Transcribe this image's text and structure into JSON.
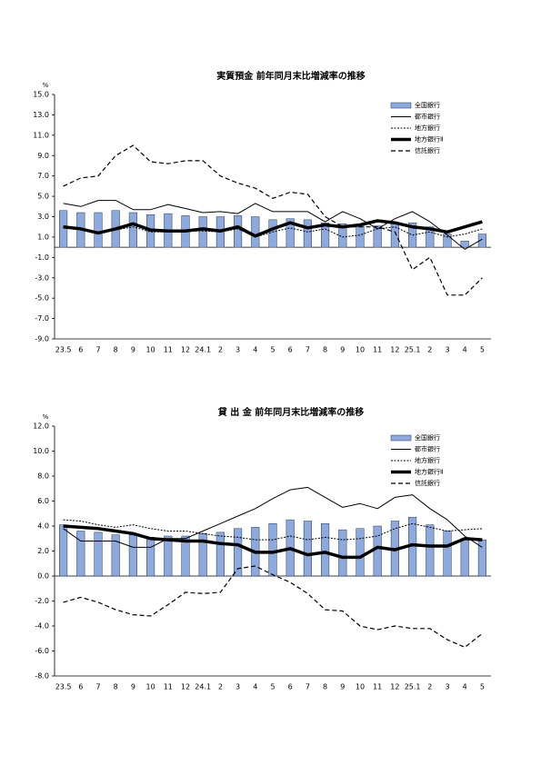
{
  "chart_data": [
    {
      "type": "bar-line",
      "title": "実質預金 前年同月末比増減率の推移",
      "y_unit": "%",
      "categories": [
        "23.5",
        "6",
        "7",
        "8",
        "9",
        "10",
        "11",
        "12",
        "24.1",
        "2",
        "3",
        "4",
        "5",
        "6",
        "7",
        "8",
        "9",
        "10",
        "11",
        "12",
        "25.1",
        "2",
        "3",
        "4",
        "5"
      ],
      "ylim": [
        -9,
        15
      ],
      "yticks": [
        {
          "value": -9,
          "label": "-9.0"
        },
        {
          "value": -7,
          "label": "-7.0"
        },
        {
          "value": -5,
          "label": "-5.0"
        },
        {
          "value": -3,
          "label": "-3.0"
        },
        {
          "value": -1,
          "label": "-1.0"
        },
        {
          "value": 1,
          "label": "1.0"
        },
        {
          "value": 3,
          "label": "3.0"
        },
        {
          "value": 5,
          "label": "5.0"
        },
        {
          "value": 7,
          "label": "7.0"
        },
        {
          "value": 9,
          "label": "9.0"
        },
        {
          "value": 11,
          "label": "11.0"
        },
        {
          "value": 13,
          "label": "13.0"
        },
        {
          "value": 15,
          "label": "15.0"
        }
      ],
      "legend": "upper right",
      "series": [
        {
          "name": "全国銀行",
          "type": "bar",
          "color": "#8ea9dc",
          "values": [
            3.6,
            3.4,
            3.4,
            3.6,
            3.4,
            3.2,
            3.3,
            3.1,
            3.0,
            3.0,
            3.1,
            3.0,
            2.7,
            2.8,
            2.7,
            2.4,
            2.3,
            2.2,
            2.1,
            2.3,
            2.4,
            2.0,
            1.3,
            0.6,
            1.3
          ]
        },
        {
          "name": "都市銀行",
          "type": "line",
          "style": "solid",
          "color": "#000000",
          "values": [
            4.3,
            4.0,
            4.6,
            4.6,
            3.7,
            3.7,
            4.2,
            3.8,
            3.4,
            3.5,
            3.3,
            4.3,
            3.5,
            3.5,
            3.5,
            2.5,
            3.5,
            2.8,
            1.8,
            2.8,
            3.5,
            2.5,
            1.2,
            -0.2,
            0.8
          ]
        },
        {
          "name": "地方銀行",
          "type": "line",
          "style": "dotted",
          "color": "#000000",
          "values": [
            2.0,
            1.8,
            1.5,
            1.7,
            2.0,
            1.5,
            1.5,
            1.6,
            1.6,
            1.5,
            1.8,
            1.0,
            1.5,
            1.9,
            1.5,
            1.8,
            1.0,
            1.2,
            1.8,
            2.0,
            1.2,
            1.5,
            1.0,
            1.3,
            1.8
          ]
        },
        {
          "name": "地方銀行Ⅱ",
          "type": "line",
          "style": "thick",
          "color": "#000000",
          "values": [
            2.0,
            1.8,
            1.4,
            1.8,
            2.3,
            1.7,
            1.6,
            1.6,
            1.8,
            1.6,
            2.0,
            1.1,
            1.8,
            2.4,
            1.9,
            2.2,
            2.0,
            2.2,
            2.6,
            2.4,
            2.0,
            1.8,
            1.5,
            2.0,
            2.5
          ]
        },
        {
          "name": "信託銀行",
          "type": "line",
          "style": "dashed",
          "color": "#000000",
          "values": [
            6.0,
            6.8,
            7.0,
            9.0,
            10.0,
            8.4,
            8.2,
            8.5,
            8.5,
            7.0,
            6.3,
            5.8,
            4.8,
            5.4,
            5.2,
            3.0,
            2.0,
            2.0,
            2.0,
            1.5,
            -2.2,
            -1.0,
            -4.7,
            -4.7,
            -3.0
          ]
        }
      ]
    },
    {
      "type": "bar-line",
      "title": "貸 出 金 前年同月末比増減率の推移",
      "y_unit": "%",
      "categories": [
        "23.5",
        "6",
        "7",
        "8",
        "9",
        "10",
        "11",
        "12",
        "24.1",
        "2",
        "3",
        "4",
        "5",
        "6",
        "7",
        "8",
        "9",
        "10",
        "11",
        "12",
        "25.1",
        "2",
        "3",
        "4",
        "5"
      ],
      "ylim": [
        -8,
        12
      ],
      "yticks": [
        {
          "value": -8,
          "label": "-8.0"
        },
        {
          "value": -6,
          "label": "-6.0"
        },
        {
          "value": -4,
          "label": "-4.0"
        },
        {
          "value": -2,
          "label": "-2.0"
        },
        {
          "value": 0,
          "label": "0.0"
        },
        {
          "value": 2,
          "label": "2.0"
        },
        {
          "value": 4,
          "label": "4.0"
        },
        {
          "value": 6,
          "label": "6.0"
        },
        {
          "value": 8,
          "label": "8.0"
        },
        {
          "value": 10,
          "label": "10.0"
        },
        {
          "value": 12,
          "label": "12.0"
        }
      ],
      "legend": "upper right",
      "series": [
        {
          "name": "全国銀行",
          "type": "bar",
          "color": "#8ea9dc",
          "values": [
            4.1,
            3.6,
            3.5,
            3.3,
            3.3,
            3.1,
            3.2,
            3.2,
            3.4,
            3.5,
            3.8,
            3.9,
            4.2,
            4.5,
            4.4,
            4.2,
            3.7,
            3.8,
            4.0,
            4.4,
            4.7,
            4.1,
            3.6,
            3.0,
            2.9
          ]
        },
        {
          "name": "都市銀行",
          "type": "line",
          "style": "solid",
          "color": "#000000",
          "values": [
            3.8,
            2.8,
            2.8,
            2.8,
            2.3,
            2.3,
            3.0,
            3.0,
            3.6,
            4.2,
            4.8,
            5.4,
            6.2,
            6.9,
            7.1,
            6.3,
            5.5,
            5.8,
            5.4,
            6.3,
            6.5,
            5.4,
            4.5,
            3.2,
            2.3
          ]
        },
        {
          "name": "地方銀行",
          "type": "line",
          "style": "dotted",
          "color": "#000000",
          "values": [
            4.5,
            4.4,
            4.1,
            3.9,
            4.1,
            3.8,
            3.6,
            3.6,
            3.4,
            3.2,
            3.1,
            2.9,
            2.9,
            3.2,
            2.9,
            3.1,
            2.9,
            3.0,
            3.2,
            3.8,
            4.2,
            3.9,
            3.6,
            3.7,
            3.8
          ]
        },
        {
          "name": "地方銀行Ⅱ",
          "type": "line",
          "style": "thick",
          "color": "#000000",
          "values": [
            4.0,
            3.9,
            3.8,
            3.6,
            3.4,
            3.0,
            2.9,
            2.8,
            2.8,
            2.6,
            2.5,
            1.9,
            1.9,
            2.2,
            1.7,
            1.9,
            1.5,
            1.5,
            2.3,
            2.1,
            2.5,
            2.4,
            2.4,
            3.0,
            2.9
          ]
        },
        {
          "name": "信託銀行",
          "type": "line",
          "style": "dashed",
          "color": "#000000",
          "values": [
            -2.1,
            -1.7,
            -2.1,
            -2.7,
            -3.1,
            -3.2,
            -2.3,
            -1.3,
            -1.4,
            -1.3,
            0.6,
            0.8,
            0.1,
            -0.5,
            -1.4,
            -2.7,
            -2.8,
            -4.0,
            -4.3,
            -4.0,
            -4.2,
            -4.2,
            -5.1,
            -5.7,
            -4.6
          ]
        }
      ]
    }
  ]
}
